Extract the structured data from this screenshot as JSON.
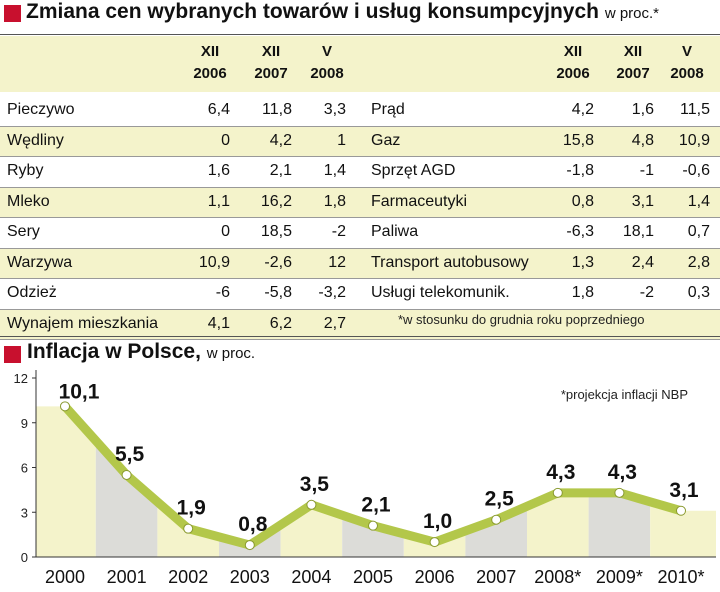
{
  "table": {
    "title": "Zmiana cen wybranych towarów i usług konsumpcyjnych",
    "title_unit": "w proc.*",
    "columns": [
      {
        "month": "XII",
        "year": "2006"
      },
      {
        "month": "XII",
        "year": "2007"
      },
      {
        "month": "V",
        "year": "2008"
      }
    ],
    "left_rows": [
      {
        "name": "Pieczywo",
        "values": [
          "6,4",
          "11,8",
          "3,3"
        ]
      },
      {
        "name": "Wędliny",
        "values": [
          "0",
          "4,2",
          "1"
        ]
      },
      {
        "name": "Ryby",
        "values": [
          "1,6",
          "2,1",
          "1,4"
        ]
      },
      {
        "name": "Mleko",
        "values": [
          "1,1",
          "16,2",
          "1,8"
        ]
      },
      {
        "name": "Sery",
        "values": [
          "0",
          "18,5",
          "-2"
        ]
      },
      {
        "name": "Warzywa",
        "values": [
          "10,9",
          "-2,6",
          "12"
        ]
      },
      {
        "name": "Odzież",
        "values": [
          "-6",
          "-5,8",
          "-3,2"
        ]
      },
      {
        "name": "Wynajem mieszkania",
        "values": [
          "4,1",
          "6,2",
          "2,7"
        ]
      }
    ],
    "right_rows": [
      {
        "name": "Prąd",
        "values": [
          "4,2",
          "1,6",
          "11,5"
        ]
      },
      {
        "name": "Gaz",
        "values": [
          "15,8",
          "4,8",
          "10,9"
        ]
      },
      {
        "name": "Sprzęt AGD",
        "values": [
          "-1,8",
          "-1",
          "-0,6"
        ]
      },
      {
        "name": "Farmaceutyki",
        "values": [
          "0,8",
          "3,1",
          "1,4"
        ]
      },
      {
        "name": "Paliwa",
        "values": [
          "-6,3",
          "18,1",
          "0,7"
        ]
      },
      {
        "name": "Transport autobusowy",
        "values": [
          "1,3",
          "2,4",
          "2,8"
        ]
      },
      {
        "name": "Usługi telekomunik.",
        "values": [
          "1,8",
          "-2",
          "0,3"
        ]
      }
    ],
    "footnote": "*w stosunku do grudnia roku poprzedniego"
  },
  "chart_data": {
    "type": "line",
    "title": "Inflacja w Polsce,",
    "title_unit": "w proc.",
    "annotation": "*projekcja inflacji NBP",
    "categories": [
      "2000",
      "2001",
      "2002",
      "2003",
      "2004",
      "2005",
      "2006",
      "2007",
      "2008*",
      "2009*",
      "2010*"
    ],
    "values": [
      10.1,
      5.5,
      1.9,
      0.8,
      3.5,
      2.1,
      1.0,
      2.5,
      4.3,
      4.3,
      3.1
    ],
    "value_labels": [
      "10,1",
      "5,5",
      "1,9",
      "0,8",
      "3,5",
      "2,1",
      "1,0",
      "2,5",
      "4,3",
      "4,3",
      "3,1"
    ],
    "yticks": [
      0,
      3,
      6,
      9,
      12
    ],
    "ylim": [
      0,
      12
    ],
    "xlabel": "",
    "ylabel": "",
    "grid": false,
    "line_color": "#b3c74a",
    "marker_color": "#ffffff",
    "area_colors": [
      "#f4f3cb",
      "#dcdcd8"
    ],
    "accent_color": "#c8102e"
  }
}
